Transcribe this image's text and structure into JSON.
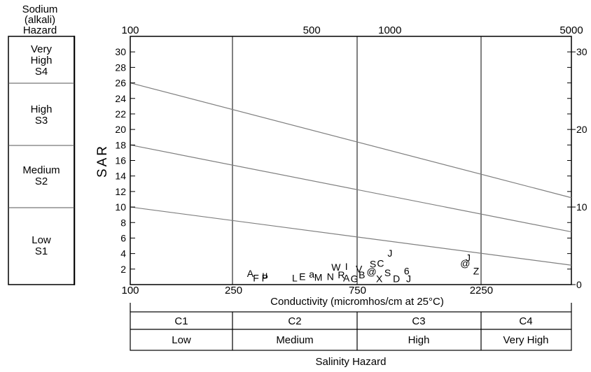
{
  "chart_data": {
    "type": "scatter",
    "title": "",
    "xlabel": "Conductivity (micromhos/cm at 25°C)",
    "ylabel": "SAR",
    "xscale": "log",
    "xlim": [
      100,
      5000
    ],
    "ylim": [
      0,
      32
    ],
    "grid": false,
    "legend": "none",
    "x_ticks_bottom": [
      100,
      250,
      750,
      2250
    ],
    "x_ticks_top": [
      100,
      500,
      1000,
      5000
    ],
    "y_ticks_left": [
      2,
      4,
      6,
      8,
      10,
      12,
      14,
      16,
      18,
      20,
      22,
      24,
      26,
      28,
      30
    ],
    "y_ticks_right": [
      0,
      10,
      20,
      30
    ],
    "sodium_header": [
      "Sodium",
      "(alkali)",
      "Hazard"
    ],
    "sodium_zones": [
      {
        "lines": [
          "Very",
          "High",
          "S4"
        ]
      },
      {
        "lines": [
          "High",
          "S3"
        ]
      },
      {
        "lines": [
          "Medium",
          "S2"
        ]
      },
      {
        "lines": [
          "Low",
          "S1"
        ]
      }
    ],
    "salinity_title": "Salinity Hazard",
    "salinity_classes": [
      {
        "code": "C1",
        "label": "Low"
      },
      {
        "code": "C2",
        "label": "Medium"
      },
      {
        "code": "C3",
        "label": "High"
      },
      {
        "code": "C4",
        "label": "Very High"
      }
    ],
    "hazard_lines": [
      {
        "x": [
          100,
          5000
        ],
        "y": [
          26,
          11.2
        ]
      },
      {
        "x": [
          100,
          5000
        ],
        "y": [
          18,
          6.8
        ]
      },
      {
        "x": [
          100,
          5000
        ],
        "y": [
          10,
          2.5
        ]
      }
    ],
    "samples": [
      {
        "label": "J",
        "x": 1000,
        "y": 3.6
      },
      {
        "label": "C",
        "x": 920,
        "y": 2.3
      },
      {
        "label": "S",
        "x": 860,
        "y": 2.2
      },
      {
        "label": "W",
        "x": 620,
        "y": 1.8
      },
      {
        "label": "I",
        "x": 680,
        "y": 1.9
      },
      {
        "label": "V",
        "x": 760,
        "y": 1.6
      },
      {
        "label": "@",
        "x": 850,
        "y": 1.2
      },
      {
        "label": "S",
        "x": 980,
        "y": 1.1
      },
      {
        "label": "6",
        "x": 1160,
        "y": 1.3
      },
      {
        "label": "X",
        "x": 910,
        "y": 0.3
      },
      {
        "label": "D",
        "x": 1060,
        "y": 0.3
      },
      {
        "label": "J",
        "x": 1180,
        "y": 0.3
      },
      {
        "label": "G",
        "x": 730,
        "y": 0.3
      },
      {
        "label": "A",
        "x": 680,
        "y": 0.4
      },
      {
        "label": "N",
        "x": 590,
        "y": 0.6
      },
      {
        "label": "M",
        "x": 530,
        "y": 0.5
      },
      {
        "label": "E",
        "x": 460,
        "y": 0.6
      },
      {
        "label": "L",
        "x": 430,
        "y": 0.4
      },
      {
        "label": "a",
        "x": 500,
        "y": 0.9
      },
      {
        "label": "u",
        "x": 330,
        "y": 0.8
      },
      {
        "label": "A",
        "x": 290,
        "y": 1.0
      },
      {
        "label": "F",
        "x": 305,
        "y": 0.4
      },
      {
        "label": "P",
        "x": 330,
        "y": 0.4
      },
      {
        "label": "R",
        "x": 650,
        "y": 0.8
      },
      {
        "label": "B",
        "x": 780,
        "y": 0.8
      },
      {
        "label": "@",
        "x": 1950,
        "y": 2.3
      },
      {
        "label": "J",
        "x": 2000,
        "y": 3.0
      },
      {
        "label": "Z",
        "x": 2150,
        "y": 1.3
      }
    ]
  }
}
